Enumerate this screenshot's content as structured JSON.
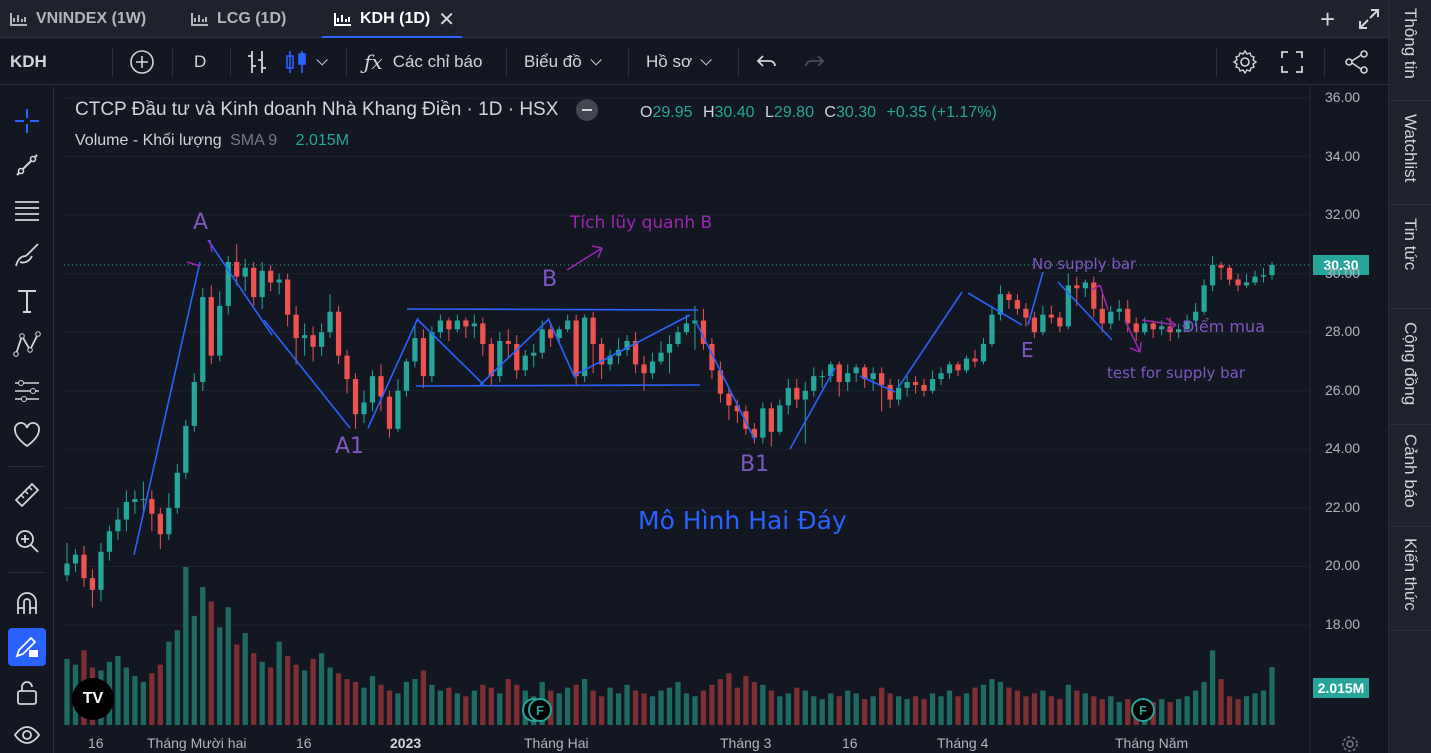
{
  "tabs": [
    {
      "label": "VNINDEX (1W)",
      "active": false
    },
    {
      "label": "LCG (1D)",
      "active": false
    },
    {
      "label": "KDH (1D)",
      "active": true
    }
  ],
  "toolbar": {
    "symbol": "KDH",
    "interval": "D",
    "indicators_label": "Các chỉ báo",
    "chart_label": "Biểu đồ",
    "profile_label": "Hồ sơ"
  },
  "right_sidebar": [
    "Thông tin",
    "Watchlist",
    "Tin tức",
    "Cộng đồng",
    "Cảnh báo",
    "Kiến thức"
  ],
  "legend": {
    "title": "CTCP Đầu tư và Kinh doanh Nhà Khang Điền · 1D · HSX",
    "open_key": "O",
    "open": "29.95",
    "high_key": "H",
    "high": "30.40",
    "low_key": "L",
    "low": "29.80",
    "close_key": "C",
    "close": "30.30",
    "change": "+0.35 (+1.17%)",
    "volume_label": "Volume - Khối lượng",
    "sma_label": "SMA 9",
    "volume_value": "2.015M"
  },
  "price_tag": "30.30",
  "volume_tag": "2.015M",
  "annotations": {
    "a": "A",
    "a1": "A1",
    "b": "B",
    "b1": "B1",
    "e": "E",
    "accumulation": "Tích lũy quanh B",
    "pattern": "Mô Hình Hai Đáy",
    "no_supply": "No supply bar",
    "buy_point": "Điểm mua",
    "test_supply": "test for supply bar"
  },
  "colors": {
    "up": "#26a69a",
    "down": "#ef5350",
    "vol_up": "#1f6b63",
    "vol_down": "#7d2f33",
    "annotation": "#7e57c2",
    "pattern": "#2962ff",
    "line": "#2962ff"
  },
  "chart_data": {
    "type": "candlestick",
    "title": "CTCP Đầu tư và Kinh doanh Nhà Khang Điền · 1D · HSX",
    "ylim": [
      16,
      36
    ],
    "y_ticks": [
      "36.00",
      "34.00",
      "32.00",
      "30.00",
      "28.00",
      "26.00",
      "24.00",
      "22.00",
      "20.00",
      "18.00"
    ],
    "x_ticks": [
      "16",
      "Tháng Mười hai",
      "16",
      "2023",
      "Tháng Hai",
      "Tháng 3",
      "16",
      "Tháng 4",
      "Tháng Năm"
    ],
    "candles": [
      [
        19.7,
        20.1,
        19.5,
        20.8
      ],
      [
        20.1,
        20.4,
        19.8,
        20.6
      ],
      [
        20.4,
        19.6,
        19.3,
        20.7
      ],
      [
        19.6,
        19.2,
        18.6,
        19.9
      ],
      [
        19.2,
        20.5,
        18.8,
        20.8
      ],
      [
        20.5,
        21.2,
        20.2,
        21.4
      ],
      [
        21.2,
        21.6,
        20.9,
        22.0
      ],
      [
        21.6,
        22.2,
        21.2,
        22.6
      ],
      [
        22.2,
        22.3,
        21.8,
        22.6
      ],
      [
        22.3,
        22.3,
        21.9,
        22.9
      ],
      [
        22.3,
        21.8,
        21.2,
        22.6
      ],
      [
        21.8,
        21.1,
        20.6,
        22.0
      ],
      [
        21.1,
        22.0,
        20.9,
        22.5
      ],
      [
        22.0,
        23.2,
        21.8,
        23.5
      ],
      [
        23.2,
        24.8,
        23.0,
        25.0
      ],
      [
        24.8,
        26.3,
        24.6,
        26.6
      ],
      [
        26.3,
        29.2,
        26.0,
        29.5
      ],
      [
        29.2,
        27.2,
        26.9,
        29.6
      ],
      [
        27.2,
        28.9,
        27.0,
        29.4
      ],
      [
        28.9,
        30.4,
        28.6,
        30.6
      ],
      [
        30.4,
        29.9,
        29.6,
        31.0
      ],
      [
        29.9,
        30.2,
        29.4,
        30.5
      ],
      [
        30.2,
        29.2,
        28.9,
        30.4
      ],
      [
        29.2,
        30.1,
        28.8,
        30.4
      ],
      [
        30.1,
        29.7,
        29.4,
        30.3
      ],
      [
        29.7,
        29.8,
        29.3,
        30.0
      ],
      [
        29.8,
        28.6,
        28.2,
        30.0
      ],
      [
        28.6,
        27.8,
        26.9,
        28.9
      ],
      [
        27.8,
        27.9,
        27.2,
        28.3
      ],
      [
        27.9,
        27.5,
        27.0,
        28.2
      ],
      [
        27.5,
        28.0,
        27.2,
        28.3
      ],
      [
        28.0,
        28.7,
        27.8,
        29.3
      ],
      [
        28.7,
        27.2,
        26.9,
        28.9
      ],
      [
        27.2,
        26.4,
        25.9,
        27.4
      ],
      [
        26.4,
        25.2,
        24.7,
        26.6
      ],
      [
        25.2,
        25.6,
        24.9,
        26.0
      ],
      [
        25.6,
        26.5,
        25.3,
        26.7
      ],
      [
        26.5,
        25.8,
        25.3,
        26.9
      ],
      [
        25.8,
        24.7,
        24.4,
        26.0
      ],
      [
        24.7,
        26.0,
        24.6,
        26.4
      ],
      [
        26.0,
        27.0,
        25.8,
        27.1
      ],
      [
        27.0,
        27.8,
        26.8,
        28.2
      ],
      [
        27.8,
        26.5,
        26.1,
        28.1
      ],
      [
        26.5,
        28.0,
        26.3,
        28.2
      ],
      [
        28.0,
        28.4,
        27.8,
        28.6
      ],
      [
        28.4,
        28.1,
        27.7,
        28.5
      ],
      [
        28.1,
        28.4,
        28.0,
        28.6
      ],
      [
        28.4,
        28.2,
        27.8,
        28.5
      ],
      [
        28.2,
        28.3,
        27.8,
        28.6
      ],
      [
        28.3,
        27.6,
        27.2,
        28.5
      ],
      [
        27.6,
        26.5,
        26.2,
        27.8
      ],
      [
        26.5,
        27.7,
        26.3,
        28.0
      ],
      [
        27.7,
        27.6,
        27.1,
        28.1
      ],
      [
        27.6,
        26.7,
        26.4,
        27.9
      ],
      [
        26.7,
        27.2,
        26.5,
        27.4
      ],
      [
        27.2,
        27.3,
        26.8,
        27.6
      ],
      [
        27.3,
        28.1,
        27.1,
        28.4
      ],
      [
        28.1,
        27.8,
        27.5,
        28.3
      ],
      [
        27.8,
        28.1,
        27.6,
        28.2
      ],
      [
        28.1,
        28.4,
        28.0,
        28.6
      ],
      [
        28.4,
        26.5,
        26.2,
        28.6
      ],
      [
        26.5,
        28.5,
        26.3,
        28.6
      ],
      [
        28.5,
        27.6,
        26.6,
        28.7
      ],
      [
        27.6,
        26.9,
        26.4,
        27.8
      ],
      [
        26.9,
        27.2,
        26.7,
        27.4
      ],
      [
        27.2,
        27.4,
        26.9,
        27.8
      ],
      [
        27.4,
        27.7,
        27.2,
        27.9
      ],
      [
        27.7,
        26.9,
        26.6,
        28.0
      ],
      [
        26.9,
        26.6,
        26.0,
        27.2
      ],
      [
        26.6,
        27.0,
        26.4,
        27.3
      ],
      [
        27.0,
        27.3,
        26.9,
        27.7
      ],
      [
        27.3,
        27.6,
        26.6,
        27.9
      ],
      [
        27.6,
        28.0,
        27.5,
        28.2
      ],
      [
        28.0,
        28.3,
        27.9,
        28.6
      ],
      [
        28.3,
        28.4,
        27.4,
        28.9
      ],
      [
        28.4,
        27.6,
        27.4,
        28.8
      ],
      [
        27.6,
        26.7,
        26.4,
        27.8
      ],
      [
        26.7,
        25.9,
        25.6,
        27.0
      ],
      [
        25.9,
        25.5,
        25.0,
        26.1
      ],
      [
        25.5,
        25.3,
        24.9,
        25.7
      ],
      [
        25.3,
        24.7,
        24.5,
        25.5
      ],
      [
        24.7,
        24.4,
        24.2,
        24.9
      ],
      [
        24.4,
        25.4,
        24.2,
        25.6
      ],
      [
        25.4,
        24.6,
        24.1,
        25.6
      ],
      [
        24.6,
        25.5,
        24.5,
        25.7
      ],
      [
        25.5,
        26.1,
        25.2,
        26.4
      ],
      [
        26.1,
        25.7,
        25.4,
        26.4
      ],
      [
        25.7,
        26.0,
        24.2,
        26.3
      ],
      [
        26.0,
        26.5,
        25.8,
        26.8
      ],
      [
        26.5,
        26.5,
        26.1,
        26.7
      ],
      [
        26.5,
        26.9,
        26.3,
        27.0
      ],
      [
        26.9,
        26.3,
        25.8,
        27.0
      ],
      [
        26.3,
        26.6,
        26.0,
        26.9
      ],
      [
        26.6,
        26.8,
        26.3,
        26.9
      ],
      [
        26.8,
        26.4,
        26.1,
        26.9
      ],
      [
        26.4,
        26.6,
        26.0,
        26.8
      ],
      [
        26.6,
        26.2,
        25.3,
        26.8
      ],
      [
        26.2,
        25.7,
        25.4,
        26.4
      ],
      [
        25.7,
        26.1,
        25.5,
        26.4
      ],
      [
        26.1,
        26.3,
        25.8,
        26.5
      ],
      [
        26.3,
        26.2,
        25.9,
        26.5
      ],
      [
        26.2,
        26.0,
        25.8,
        26.4
      ],
      [
        26.0,
        26.4,
        25.9,
        26.7
      ],
      [
        26.4,
        26.6,
        26.2,
        26.8
      ],
      [
        26.6,
        26.9,
        26.4,
        27.0
      ],
      [
        26.9,
        26.7,
        26.5,
        27.0
      ],
      [
        26.7,
        27.1,
        26.6,
        27.2
      ],
      [
        27.1,
        27.0,
        26.8,
        27.4
      ],
      [
        27.0,
        27.6,
        26.9,
        27.8
      ],
      [
        27.6,
        28.6,
        27.5,
        28.9
      ],
      [
        28.6,
        29.3,
        28.4,
        29.6
      ],
      [
        29.3,
        29.1,
        28.8,
        29.4
      ],
      [
        29.1,
        28.8,
        28.6,
        29.3
      ],
      [
        28.8,
        28.5,
        28.2,
        29.0
      ],
      [
        28.5,
        28.0,
        27.8,
        28.7
      ],
      [
        28.0,
        28.6,
        27.9,
        28.9
      ],
      [
        28.6,
        28.5,
        28.3,
        28.9
      ],
      [
        28.5,
        28.2,
        28.0,
        28.7
      ],
      [
        28.2,
        29.6,
        28.1,
        30.0
      ],
      [
        29.6,
        29.5,
        28.9,
        29.9
      ],
      [
        29.5,
        29.7,
        29.2,
        29.8
      ],
      [
        29.7,
        28.8,
        28.5,
        29.9
      ],
      [
        28.8,
        28.3,
        28.0,
        29.3
      ],
      [
        28.3,
        28.7,
        28.1,
        28.9
      ],
      [
        28.7,
        28.8,
        28.4,
        29.1
      ],
      [
        28.8,
        28.3,
        28.0,
        29.1
      ],
      [
        28.3,
        28.0,
        27.7,
        28.5
      ],
      [
        28.0,
        28.3,
        27.9,
        28.5
      ],
      [
        28.3,
        28.1,
        27.8,
        28.4
      ],
      [
        28.1,
        28.2,
        27.9,
        28.4
      ],
      [
        28.2,
        28.0,
        27.7,
        28.5
      ],
      [
        28.0,
        28.1,
        27.8,
        28.3
      ],
      [
        28.1,
        28.4,
        28.0,
        28.6
      ],
      [
        28.4,
        28.7,
        28.2,
        29.0
      ],
      [
        28.7,
        29.6,
        28.6,
        29.8
      ],
      [
        29.6,
        30.3,
        29.4,
        30.6
      ],
      [
        30.3,
        30.2,
        29.8,
        30.4
      ],
      [
        30.2,
        29.8,
        29.6,
        30.3
      ],
      [
        29.8,
        29.6,
        29.4,
        30.0
      ],
      [
        29.6,
        29.7,
        29.5,
        30.0
      ],
      [
        29.7,
        29.9,
        29.6,
        30.1
      ],
      [
        29.9,
        29.95,
        29.7,
        30.2
      ],
      [
        29.95,
        30.3,
        29.8,
        30.4
      ]
    ],
    "volume": [
      2.3,
      2.1,
      2.6,
      2.0,
      1.9,
      2.2,
      2.4,
      2.0,
      1.7,
      1.5,
      1.8,
      2.1,
      2.9,
      3.3,
      5.5,
      3.8,
      4.8,
      4.3,
      3.4,
      4.1,
      2.8,
      3.2,
      2.5,
      2.2,
      2.0,
      2.9,
      2.4,
      2.1,
      1.9,
      2.3,
      2.5,
      2.0,
      1.8,
      1.6,
      1.5,
      1.3,
      1.7,
      1.4,
      1.2,
      1.1,
      1.5,
      1.6,
      1.9,
      1.4,
      1.2,
      1.3,
      1.1,
      1.0,
      1.2,
      1.4,
      1.3,
      1.1,
      1.6,
      1.4,
      1.2,
      1.0,
      1.5,
      1.2,
      1.1,
      1.3,
      1.4,
      1.6,
      1.2,
      1.0,
      1.3,
      1.1,
      1.4,
      1.2,
      1.1,
      1.0,
      1.2,
      1.3,
      1.5,
      1.1,
      1.0,
      1.2,
      1.4,
      1.6,
      1.8,
      1.3,
      1.7,
      1.5,
      1.4,
      1.2,
      1.0,
      1.1,
      1.3,
      1.2,
      1.0,
      0.9,
      1.1,
      1.0,
      1.2,
      1.1,
      0.9,
      1.0,
      1.3,
      1.1,
      1.0,
      0.9,
      1.0,
      0.9,
      1.1,
      1.0,
      1.2,
      1.0,
      1.1,
      1.3,
      1.4,
      1.6,
      1.5,
      1.3,
      1.2,
      1.0,
      1.1,
      1.2,
      1.0,
      0.9,
      1.4,
      1.2,
      1.1,
      1.0,
      0.9,
      1.0,
      0.8,
      0.9,
      0.8,
      0.9,
      0.8,
      0.9,
      0.8,
      0.9,
      1.0,
      1.2,
      1.5,
      2.6,
      1.6,
      1.0,
      0.9,
      1.0,
      1.1,
      1.2,
      2.015
    ]
  }
}
